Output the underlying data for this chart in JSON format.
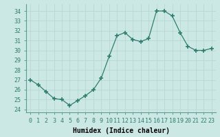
{
  "x": [
    0,
    1,
    2,
    3,
    4,
    5,
    6,
    7,
    8,
    9,
    10,
    11,
    12,
    13,
    14,
    15,
    16,
    17,
    18,
    19,
    20,
    21,
    22,
    23
  ],
  "y": [
    27,
    26.5,
    25.8,
    25.1,
    25.0,
    24.4,
    24.9,
    25.4,
    26.0,
    27.2,
    29.4,
    31.5,
    31.8,
    31.1,
    30.9,
    31.2,
    34.0,
    34.0,
    33.5,
    31.8,
    30.4,
    30.0,
    30.0,
    30.2
  ],
  "xlabel": "Humidex (Indice chaleur)",
  "xlim": [
    -0.5,
    23.5
  ],
  "ylim": [
    23.7,
    34.7
  ],
  "yticks": [
    24,
    25,
    26,
    27,
    28,
    29,
    30,
    31,
    32,
    33,
    34
  ],
  "xticks": [
    0,
    1,
    2,
    3,
    4,
    5,
    6,
    7,
    8,
    9,
    10,
    11,
    12,
    13,
    14,
    15,
    16,
    17,
    18,
    19,
    20,
    21,
    22,
    23
  ],
  "line_color": "#2e7d6e",
  "marker_color": "#2e7d6e",
  "bg_color": "#cce8e4",
  "grid_color": "#b8d8d4",
  "label_fontsize": 7,
  "tick_fontsize": 6
}
